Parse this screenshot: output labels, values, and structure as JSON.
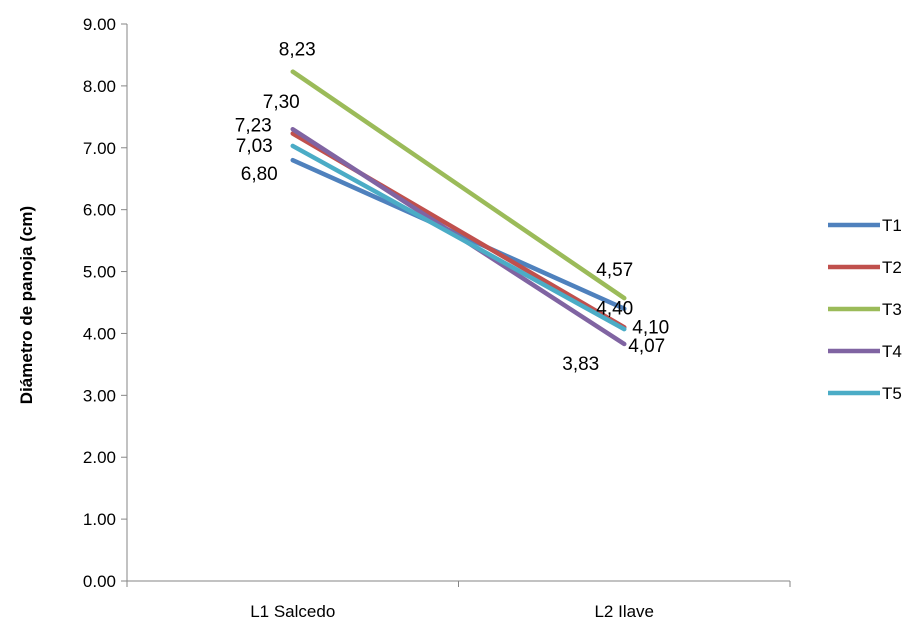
{
  "chart_data": {
    "type": "line",
    "categories": [
      "L1 Salcedo",
      "L2  Ilave"
    ],
    "ylabel": "Diámetro de panoja (cm)",
    "ylim": [
      0,
      9
    ],
    "yticks": [
      "0.00",
      "1.00",
      "2.00",
      "3.00",
      "4.00",
      "5.00",
      "6.00",
      "7.00",
      "8.00",
      "9.00"
    ],
    "grid": false,
    "legend_position": "right",
    "series": [
      {
        "name": "T1",
        "values": [
          6.8,
          4.4
        ],
        "labels": [
          "6,80",
          "4,40"
        ],
        "color": "#4F81BD"
      },
      {
        "name": "T2",
        "values": [
          7.23,
          4.1
        ],
        "labels": [
          "7,23",
          "4,10"
        ],
        "color": "#C0504D"
      },
      {
        "name": "T3",
        "values": [
          8.23,
          4.57
        ],
        "labels": [
          "8,23",
          "4,57"
        ],
        "color": "#9BBB59"
      },
      {
        "name": "T4",
        "values": [
          7.3,
          3.83
        ],
        "labels": [
          "7,30",
          "3,83"
        ],
        "color": "#8064A2"
      },
      {
        "name": "T5",
        "values": [
          7.03,
          4.07
        ],
        "labels": [
          "7,03",
          "4,07"
        ],
        "color": "#4BACC6"
      }
    ]
  }
}
